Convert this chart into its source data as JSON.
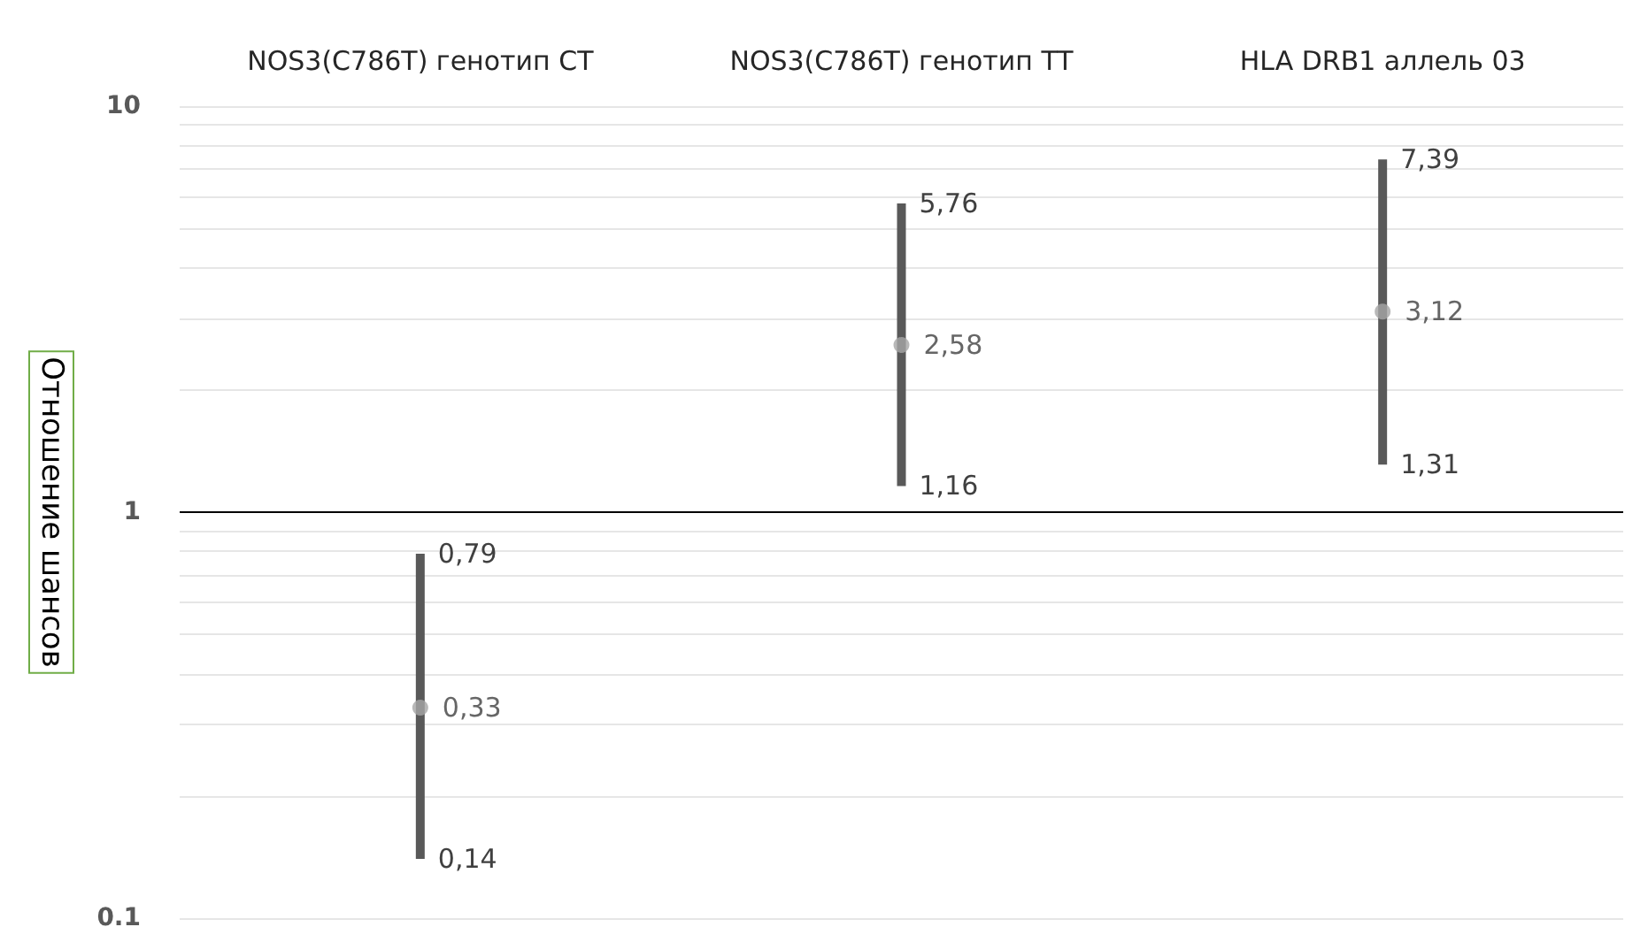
{
  "chart_data": {
    "type": "scatter",
    "ylabel": "Отношение шансов",
    "categories": [
      "NOS3(C786T) генотип CT",
      "NOS3(C786T) генотип TT",
      "HLA DRB1 аллель 03"
    ],
    "series": [
      {
        "color": "#a6a6a6",
        "values": [
          0.33,
          2.58,
          3.12
        ],
        "value_labels": [
          "0,33",
          "2,58",
          "3,12"
        ],
        "errors": [
          [
            0.14,
            0.79
          ],
          [
            1.16,
            5.76
          ],
          [
            1.31,
            7.39
          ]
        ]
      }
    ],
    "log": "y",
    "ylim": [
      0.1,
      10
    ],
    "yticks": [
      0.1,
      {
        "value": 0.2,
        "label": null
      },
      {
        "value": 0.3,
        "label": null
      },
      {
        "value": 0.4,
        "label": null
      },
      {
        "value": 0.5,
        "label": null
      },
      {
        "value": 0.6,
        "label": null
      },
      {
        "value": 0.7,
        "label": null
      },
      {
        "value": 0.8,
        "label": null
      },
      {
        "value": 0.9,
        "label": null
      },
      1,
      {
        "value": 2,
        "label": null
      },
      {
        "value": 3,
        "label": null
      },
      {
        "value": 4,
        "label": null
      },
      {
        "value": 5,
        "label": null
      },
      {
        "value": 6,
        "label": null
      },
      {
        "value": 7,
        "label": null
      },
      {
        "value": 8,
        "label": null
      },
      {
        "value": 9,
        "label": null
      },
      10
    ],
    "grid": "y",
    "marker": "circle",
    "ref_lines": [
      {
        "axis": "y",
        "value": 1,
        "label": null,
        "color": "#000000"
      }
    ],
    "annotations": [
      {
        "text": "0,79",
        "x": "NOS3(C786T) генотип CT",
        "y": 0.79
      },
      {
        "text": "0,14",
        "x": "NOS3(C786T) генотип CT",
        "y": 0.14
      },
      {
        "text": "5,76",
        "x": "NOS3(C786T) генотип TT",
        "y": 5.76
      },
      {
        "text": "1,16",
        "x": "NOS3(C786T) генотип TT",
        "y": 1.16
      },
      {
        "text": "7,39",
        "x": "HLA DRB1 аллель 03",
        "y": 7.39
      },
      {
        "text": "1,31",
        "x": "HLA DRB1 аллель 03",
        "y": 1.31
      }
    ]
  }
}
